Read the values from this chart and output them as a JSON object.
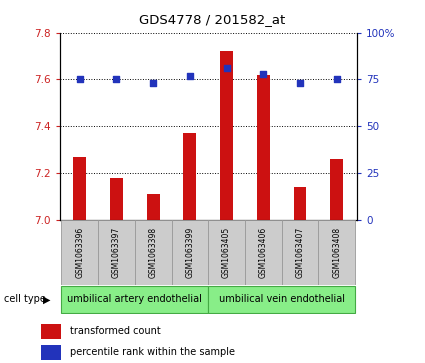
{
  "title": "GDS4778 / 201582_at",
  "samples": [
    "GSM1063396",
    "GSM1063397",
    "GSM1063398",
    "GSM1063399",
    "GSM1063405",
    "GSM1063406",
    "GSM1063407",
    "GSM1063408"
  ],
  "transformed_counts": [
    7.27,
    7.18,
    7.11,
    7.37,
    7.72,
    7.62,
    7.14,
    7.26
  ],
  "percentile_ranks": [
    75,
    75,
    73,
    77,
    81,
    78,
    73,
    75
  ],
  "ylim_left": [
    7.0,
    7.8
  ],
  "ylim_right": [
    0,
    100
  ],
  "yticks_left": [
    7.0,
    7.2,
    7.4,
    7.6,
    7.8
  ],
  "yticks_right": [
    0,
    25,
    50,
    75,
    100
  ],
  "bar_color": "#cc1111",
  "dot_color": "#2233bb",
  "group1_label": "umbilical artery endothelial",
  "group2_label": "umbilical vein endothelial",
  "group1_indices": [
    0,
    1,
    2,
    3
  ],
  "group2_indices": [
    4,
    5,
    6,
    7
  ],
  "cell_type_label": "cell type",
  "legend_bar_label": "transformed count",
  "legend_dot_label": "percentile rank within the sample",
  "group_bg_color": "#88ee88",
  "group_border_color": "#44aa44",
  "sample_box_color": "#cccccc",
  "sample_box_border": "#999999"
}
